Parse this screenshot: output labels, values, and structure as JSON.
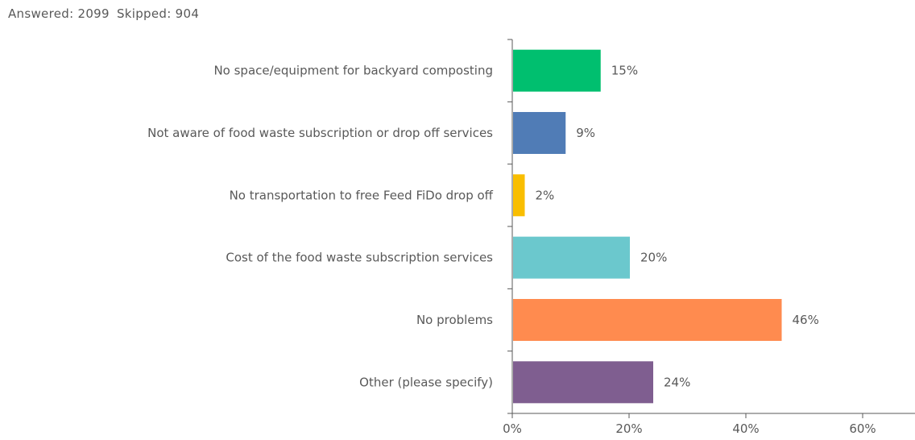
{
  "header": {
    "answered_label": "Answered: 2099",
    "skipped_label": "Skipped: 904"
  },
  "chart_data": {
    "type": "bar",
    "orientation": "horizontal",
    "title": "",
    "xlabel": "",
    "ylabel": "",
    "xlim": [
      0,
      70
    ],
    "x_ticks": [
      0,
      20,
      40,
      60
    ],
    "x_tick_labels": [
      "0%",
      "20%",
      "40%",
      "60%"
    ],
    "grid": false,
    "categories": [
      "No space/equipment for backyard composting",
      "Not aware of food waste subscription or drop off services",
      "No transportation to free Feed FiDo drop off",
      "Cost of the food waste subscription services",
      "No problems",
      "Other (please specify)"
    ],
    "values": [
      15,
      9,
      2,
      20,
      46,
      24
    ],
    "value_labels": [
      "15%",
      "9%",
      "2%",
      "20%",
      "46%",
      "24%"
    ],
    "colors": [
      "#00bf6f",
      "#507cb6",
      "#f9be00",
      "#6bc8cd",
      "#ff8b4f",
      "#7f5e90"
    ],
    "axis_color": "#595959"
  }
}
